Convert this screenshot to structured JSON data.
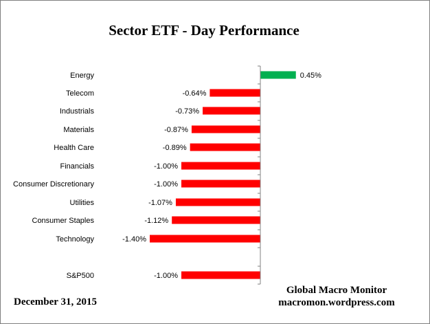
{
  "chart_data": {
    "type": "bar",
    "orientation": "horizontal",
    "title": "Sector ETF - Day  Performance",
    "categories": [
      "Energy",
      "Telecom",
      "Industrials",
      "Materials",
      "Health Care",
      "Financials",
      "Consumer Discretionary",
      "Utilities",
      "Consumer Staples",
      "Technology",
      "S&P500"
    ],
    "values": [
      0.45,
      -0.64,
      -0.73,
      -0.87,
      -0.89,
      -1.0,
      -1.0,
      -1.07,
      -1.12,
      -1.4,
      -1.0
    ],
    "labels": [
      "0.45%",
      "-0.64%",
      "-0.73%",
      "-0.87%",
      "-0.89%",
      "-1.00%",
      "-1.00%",
      "-1.07%",
      "-1.12%",
      "-1.40%",
      "-1.00%"
    ],
    "unit": "%",
    "positive_color": "#00b050",
    "negative_color": "#ff0000",
    "grid": false,
    "legend": "none"
  },
  "source": {
    "line1": "Global Macro Monitor",
    "line2": "macromon.wordpress.com"
  },
  "date": "December 31,  2015"
}
